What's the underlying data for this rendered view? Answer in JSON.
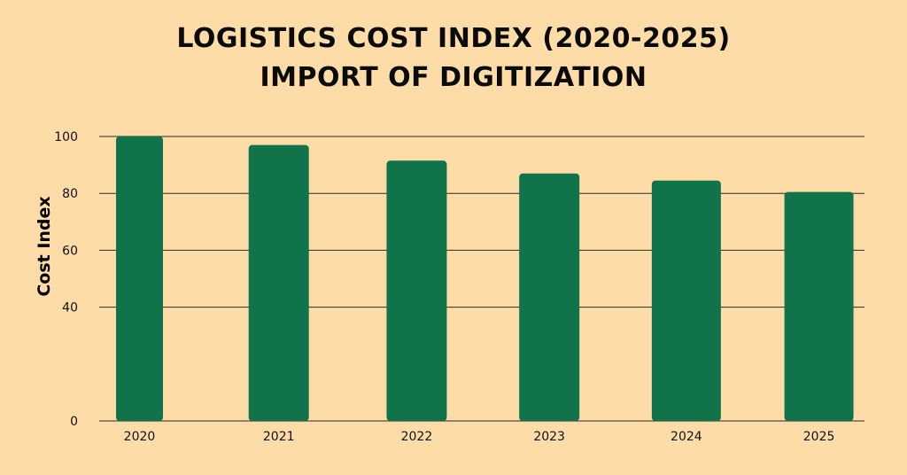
{
  "chart_data": {
    "type": "bar",
    "title": "LOGISTICS COST INDEX (2020-2025)",
    "subtitle": "IMPORT OF DIGITIZATION",
    "ylabel": "Cost Index",
    "xlabel": "",
    "categories": [
      "2020",
      "2021",
      "2022",
      "2023",
      "2024",
      "2025"
    ],
    "values": [
      100,
      97,
      91.5,
      87,
      84.5,
      80.5
    ],
    "ylim": [
      0,
      100
    ],
    "yticks": [
      "0",
      "40",
      "60",
      "80",
      "100"
    ],
    "grid": true,
    "bar_color": "#117349",
    "grid_color": "#2a2a2a"
  }
}
